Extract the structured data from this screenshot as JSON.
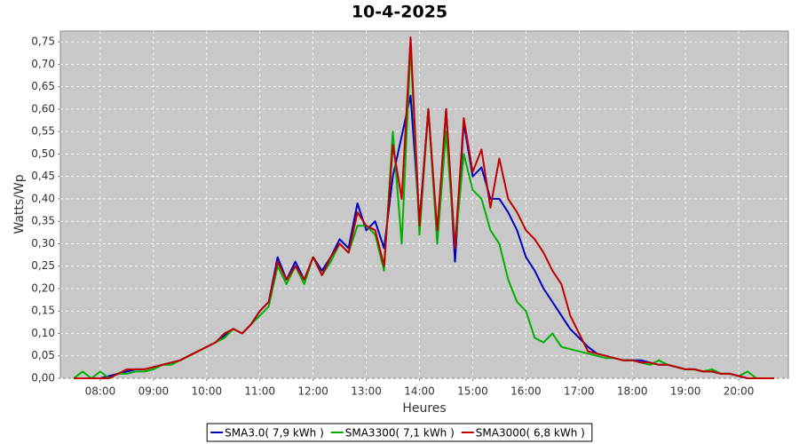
{
  "chart_data": {
    "type": "line",
    "title": "10-4-2025",
    "x_label": "Heures",
    "y_label": "Watts/Wp",
    "x": [
      450,
      460,
      470,
      480,
      490,
      500,
      510,
      520,
      530,
      540,
      550,
      560,
      570,
      580,
      590,
      600,
      610,
      620,
      630,
      640,
      650,
      660,
      670,
      680,
      690,
      700,
      710,
      720,
      730,
      740,
      750,
      760,
      770,
      780,
      790,
      800,
      810,
      820,
      830,
      840,
      850,
      860,
      870,
      880,
      890,
      900,
      910,
      920,
      930,
      940,
      950,
      960,
      970,
      980,
      990,
      1000,
      1010,
      1020,
      1030,
      1040,
      1050,
      1060,
      1070,
      1080,
      1090,
      1100,
      1110,
      1120,
      1130,
      1140,
      1150,
      1160,
      1170,
      1180,
      1190,
      1200,
      1210,
      1220,
      1230,
      1240
    ],
    "xlim": [
      435,
      1256
    ],
    "xticks": [
      {
        "value": 480,
        "label": "08:00"
      },
      {
        "value": 540,
        "label": "09:00"
      },
      {
        "value": 600,
        "label": "10:00"
      },
      {
        "value": 660,
        "label": "11:00"
      },
      {
        "value": 720,
        "label": "12:00"
      },
      {
        "value": 780,
        "label": "13:00"
      },
      {
        "value": 840,
        "label": "14:00"
      },
      {
        "value": 900,
        "label": "15:00"
      },
      {
        "value": 960,
        "label": "16:00"
      },
      {
        "value": 1020,
        "label": "17:00"
      },
      {
        "value": 1080,
        "label": "18:00"
      },
      {
        "value": 1140,
        "label": "19:00"
      },
      {
        "value": 1200,
        "label": "20:00"
      }
    ],
    "ylim": [
      0,
      0.774
    ],
    "yticks": [
      {
        "value": 0,
        "label": "0,00"
      },
      {
        "value": 0.05,
        "label": "0,05"
      },
      {
        "value": 0.1,
        "label": "0,10"
      },
      {
        "value": 0.15,
        "label": "0,15"
      },
      {
        "value": 0.2,
        "label": "0,20"
      },
      {
        "value": 0.25,
        "label": "0,25"
      },
      {
        "value": 0.3,
        "label": "0,30"
      },
      {
        "value": 0.35,
        "label": "0,35"
      },
      {
        "value": 0.4,
        "label": "0,40"
      },
      {
        "value": 0.45,
        "label": "0,45"
      },
      {
        "value": 0.5,
        "label": "0,50"
      },
      {
        "value": 0.55,
        "label": "0,55"
      },
      {
        "value": 0.6,
        "label": "0,60"
      },
      {
        "value": 0.65,
        "label": "0,65"
      },
      {
        "value": 0.7,
        "label": "0,70"
      },
      {
        "value": 0.75,
        "label": "0,75"
      }
    ],
    "grid": true,
    "legend": "bottom",
    "series": [
      {
        "name": "SMA3.0( 7,9 kWh )",
        "color": "#0000c0",
        "values": [
          0,
          0,
          0,
          0,
          0.005,
          0.01,
          0.015,
          0.02,
          0.02,
          0.025,
          0.03,
          0.035,
          0.04,
          0.05,
          0.06,
          0.07,
          0.08,
          0.095,
          0.11,
          0.1,
          0.12,
          0.15,
          0.17,
          0.27,
          0.22,
          0.26,
          0.22,
          0.27,
          0.24,
          0.27,
          0.31,
          0.29,
          0.39,
          0.33,
          0.35,
          0.29,
          0.45,
          0.54,
          0.63,
          0.35,
          0.6,
          0.31,
          0.6,
          0.26,
          0.57,
          0.45,
          0.47,
          0.4,
          0.4,
          0.37,
          0.33,
          0.27,
          0.24,
          0.2,
          0.17,
          0.14,
          0.11,
          0.09,
          0.07,
          0.055,
          0.05,
          0.045,
          0.04,
          0.04,
          0.04,
          0.035,
          0.03,
          0.03,
          0.025,
          0.02,
          0.02,
          0.015,
          0.015,
          0.01,
          0.01,
          0.005,
          0,
          0,
          0,
          0
        ]
      },
      {
        "name": "SMA3300( 7,1 kWh )",
        "color": "#00b000",
        "values": [
          0,
          0.015,
          0,
          0.015,
          0,
          0.01,
          0.01,
          0.015,
          0.015,
          0.02,
          0.03,
          0.03,
          0.04,
          0.05,
          0.06,
          0.07,
          0.08,
          0.09,
          0.11,
          0.1,
          0.12,
          0.14,
          0.16,
          0.25,
          0.21,
          0.25,
          0.21,
          0.27,
          0.23,
          0.26,
          0.3,
          0.28,
          0.34,
          0.34,
          0.32,
          0.24,
          0.55,
          0.3,
          0.74,
          0.32,
          0.6,
          0.3,
          0.55,
          0.29,
          0.5,
          0.42,
          0.4,
          0.33,
          0.3,
          0.22,
          0.17,
          0.15,
          0.09,
          0.08,
          0.1,
          0.07,
          0.065,
          0.06,
          0.055,
          0.05,
          0.045,
          0.045,
          0.04,
          0.04,
          0.035,
          0.03,
          0.04,
          0.03,
          0.025,
          0.02,
          0.02,
          0.015,
          0.02,
          0.01,
          0.01,
          0.005,
          0.015,
          0,
          0,
          0
        ]
      },
      {
        "name": "SMA3000( 6,8 kWh )",
        "color": "#c00000",
        "values": [
          0,
          0,
          0,
          0,
          0,
          0.01,
          0.02,
          0.02,
          0.02,
          0.025,
          0.03,
          0.035,
          0.04,
          0.05,
          0.06,
          0.07,
          0.08,
          0.1,
          0.11,
          0.1,
          0.12,
          0.15,
          0.17,
          0.26,
          0.22,
          0.25,
          0.22,
          0.27,
          0.23,
          0.27,
          0.3,
          0.28,
          0.37,
          0.34,
          0.33,
          0.25,
          0.52,
          0.4,
          0.76,
          0.34,
          0.6,
          0.33,
          0.6,
          0.29,
          0.58,
          0.46,
          0.51,
          0.38,
          0.49,
          0.4,
          0.37,
          0.33,
          0.31,
          0.28,
          0.24,
          0.21,
          0.14,
          0.1,
          0.06,
          0.055,
          0.05,
          0.045,
          0.04,
          0.04,
          0.035,
          0.035,
          0.03,
          0.03,
          0.025,
          0.02,
          0.02,
          0.015,
          0.015,
          0.01,
          0.01,
          0.005,
          0,
          0,
          0,
          0
        ]
      }
    ]
  }
}
